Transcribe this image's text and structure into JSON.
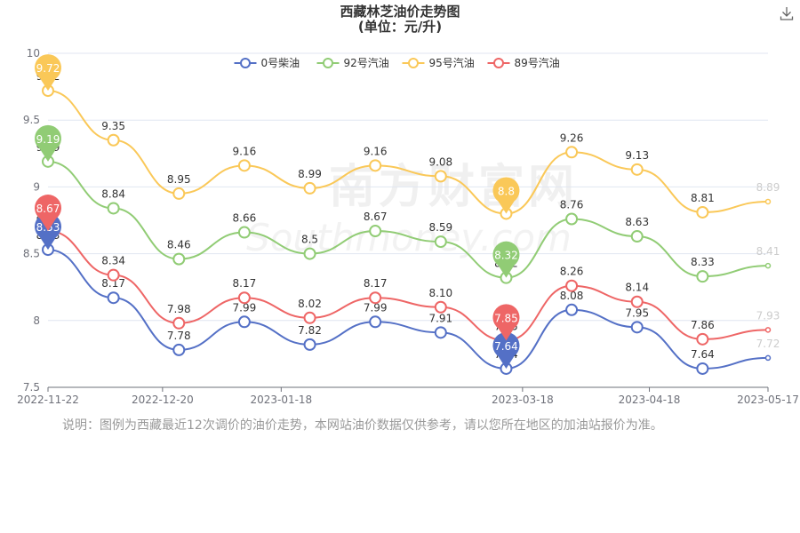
{
  "title": {
    "line1": "西藏林芝油价走势图",
    "line2": "(单位：元/升)"
  },
  "note": "说明：图例为西藏最近12次调价的油价走势，本网站油价数据仅供参考，请以您所在地区的加油站报价为准。",
  "watermark": {
    "cn": "南方财富网",
    "en": "Southmoney.com"
  },
  "icons": {
    "download": "download-icon"
  },
  "chart_data": {
    "type": "line",
    "title": "西藏林芝油价走势图",
    "subtitle": "(单位：元/升)",
    "ylim": [
      7.5,
      10
    ],
    "y_ticks": [
      "7.5",
      "8",
      "8.5",
      "9",
      "9.5",
      "10"
    ],
    "x_ticks": [
      "2022-11-22",
      "2022-12-20",
      "2023-01-18",
      "2023-03-18",
      "2023-04-18",
      "2023-05-17"
    ],
    "x": [
      "2022-11-22",
      "2022-12-06",
      "2022-12-20",
      "2023-01-03",
      "2023-01-18",
      "2023-02-03",
      "2023-02-17",
      "2023-03-18",
      "2023-04-04",
      "2023-04-18",
      "2023-05-04",
      "2023-05-17"
    ],
    "grid": true,
    "legend_position": "top-center",
    "series": [
      {
        "name": "0号柴油",
        "color": "#5470c6",
        "values": [
          8.53,
          8.17,
          7.78,
          7.99,
          7.82,
          7.99,
          7.91,
          7.64,
          8.08,
          7.95,
          7.64,
          7.72
        ],
        "labels": [
          "8.53",
          "8.17",
          "7.78",
          "7.99",
          "7.82",
          "7.99",
          "7.91",
          "7.64",
          "8.08",
          "7.95",
          "7.64",
          "7.72"
        ],
        "max_index": 0,
        "min_index": 7
      },
      {
        "name": "92号汽油",
        "color": "#91cc75",
        "values": [
          9.19,
          8.84,
          8.46,
          8.66,
          8.5,
          8.67,
          8.59,
          8.32,
          8.76,
          8.63,
          8.33,
          8.41
        ],
        "labels": [
          "9.19",
          "8.84",
          "8.46",
          "8.66",
          "8.5",
          "8.67",
          "8.59",
          "8.32",
          "8.76",
          "8.63",
          "8.33",
          "8.41"
        ],
        "max_index": 0,
        "min_index": 7
      },
      {
        "name": "95号汽油",
        "color": "#fac858",
        "values": [
          9.72,
          9.35,
          8.95,
          9.16,
          8.99,
          9.16,
          9.08,
          8.8,
          9.26,
          9.13,
          8.81,
          8.89
        ],
        "labels": [
          "9.72",
          "9.35",
          "8.95",
          "9.16",
          "8.99",
          "9.16",
          "9.08",
          "8.8",
          "9.26",
          "9.13",
          "8.81",
          "8.89"
        ],
        "max_index": 0,
        "min_index": 7
      },
      {
        "name": "89号汽油",
        "color": "#ee6666",
        "values": [
          8.67,
          8.34,
          7.98,
          8.17,
          8.02,
          8.17,
          8.1,
          7.85,
          8.26,
          8.14,
          7.86,
          7.93
        ],
        "labels": [
          "8.67",
          "8.34",
          "7.98",
          "8.17",
          "8.02",
          "8.17",
          "8.10",
          "7.85",
          "8.26",
          "8.14",
          "7.86",
          "7.93"
        ],
        "max_index": 0,
        "min_index": 7
      }
    ]
  }
}
